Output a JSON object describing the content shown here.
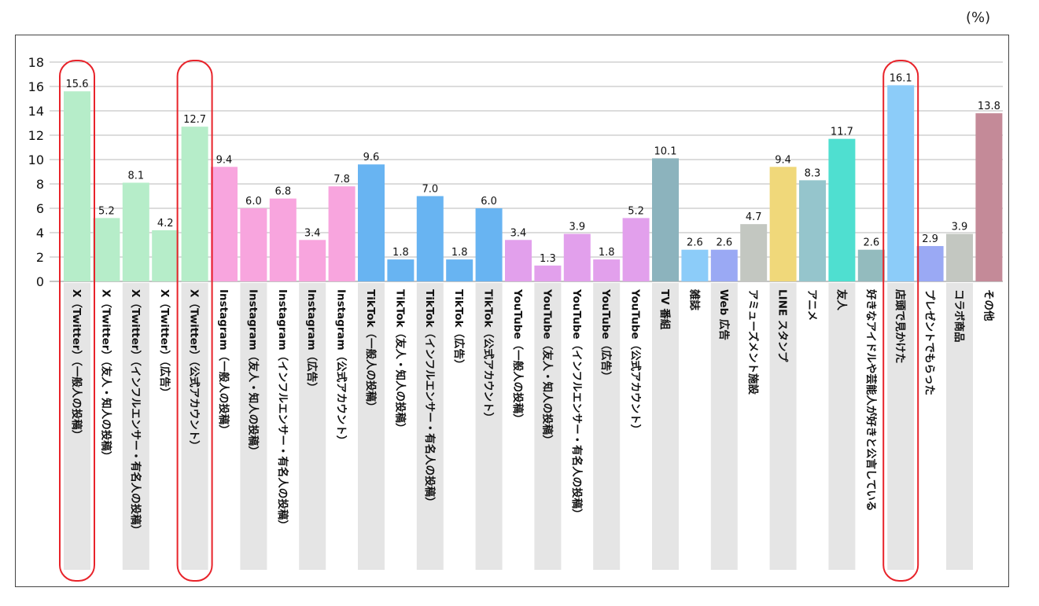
{
  "unit_label": "(%)",
  "chart_data": {
    "type": "bar",
    "title": "",
    "xlabel": "",
    "ylabel": "",
    "ylim": [
      0,
      18
    ],
    "yticks": [
      0,
      2,
      4,
      6,
      8,
      10,
      12,
      14,
      16,
      18
    ],
    "grid": true,
    "categories": [
      "X（Twitter）（一般人の投稿）",
      "X（Twitter）（友人・知人の投稿）",
      "X（Twitter）（インフルエンサー・有名人の投稿）",
      "X（Twitter）（広告）",
      "X（Twitter）（公式アカウント）",
      "Instagram（一般人の投稿）",
      "Instagram（友人・知人の投稿）",
      "Instagram（インフルエンサー・有名人の投稿）",
      "Instagram（広告）",
      "Instagram（公式アカウント）",
      "TikTok（一般人の投稿）",
      "TikTok（友人・知人の投稿）",
      "TikTok（インフルエンサー・有名人の投稿）",
      "TikTok（広告）",
      "TikTok（公式アカウント）",
      "YouTube（一般人の投稿）",
      "YouTube（友人・知人の投稿）",
      "YouTube（インフルエンサー・有名人の投稿）",
      "YouTube（広告）",
      "YouTube（公式アカウント）",
      "TV 番組",
      "雑誌",
      "Web 広告",
      "アミューズメント施設",
      "LINE スタンプ",
      "アニメ",
      "友人",
      "好きなアイドルや芸能人が好きと公言している",
      "店頭で見かけた",
      "プレゼントでもらった",
      "コラボ商品",
      "その他"
    ],
    "values": [
      15.6,
      5.2,
      8.1,
      4.2,
      12.7,
      9.4,
      6.0,
      6.8,
      3.4,
      7.8,
      9.6,
      1.8,
      7.0,
      1.8,
      6.0,
      3.4,
      1.3,
      3.9,
      1.8,
      5.2,
      10.1,
      2.6,
      2.6,
      4.7,
      9.4,
      8.3,
      11.7,
      2.6,
      16.1,
      2.9,
      3.9,
      13.8
    ],
    "value_labels": [
      "15.6",
      "5.2",
      "8.1",
      "4.2",
      "12.7",
      "9.4",
      "6.0",
      "6.8",
      "3.4",
      "7.8",
      "9.6",
      "1.8",
      "7.0",
      "1.8",
      "6.0",
      "3.4",
      "1.3",
      "3.9",
      "1.8",
      "5.2",
      "10.1",
      "2.6",
      "2.6",
      "4.7",
      "9.4",
      "8.3",
      "11.7",
      "2.6",
      "16.1",
      "2.9",
      "3.9",
      "13.8"
    ],
    "colors": [
      "#b6edc9",
      "#b6edc9",
      "#b6edc9",
      "#b6edc9",
      "#b6edc9",
      "#f8a5de",
      "#f8a5de",
      "#f8a5de",
      "#f8a5de",
      "#f8a5de",
      "#68b4f2",
      "#68b4f2",
      "#68b4f2",
      "#68b4f2",
      "#68b4f2",
      "#e2a0ec",
      "#e2a0ec",
      "#e2a0ec",
      "#e2a0ec",
      "#e2a0ec",
      "#8cb3bd",
      "#8cccf9",
      "#9aa9f4",
      "#c3c7c1",
      "#f0d87a",
      "#95c5cc",
      "#4fdfd0",
      "#93bbbe",
      "#8cccf9",
      "#9aa9f4",
      "#c3c7c1",
      "#c48a98"
    ],
    "highlighted": [
      0,
      4,
      28
    ],
    "highlight_color": "#e8232a",
    "label_band_color": "#e5e5e5",
    "banded": [
      0,
      2,
      4,
      6,
      8,
      10,
      12,
      14,
      16,
      18,
      20,
      22,
      24,
      26,
      28,
      30
    ],
    "gridline_color": "#b8b8b8"
  }
}
